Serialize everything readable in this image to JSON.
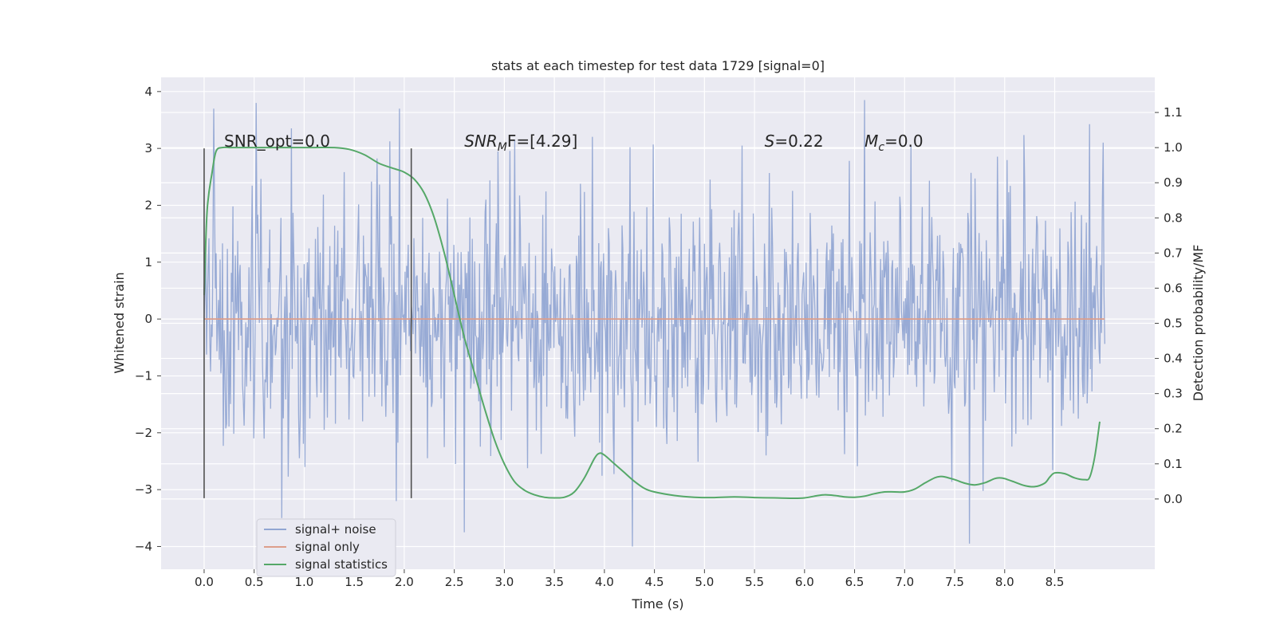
{
  "chart_data": {
    "type": "line",
    "title": "stats at each timestep for test data 1729 [signal=0]",
    "xlabel": "Time (s)",
    "ylabel": "Whitened strain",
    "ylabel_right": "Detection probability/MF",
    "xlim": [
      -0.43,
      9.5
    ],
    "ylim": [
      -4.4,
      4.25
    ],
    "ylim_right": [
      -0.2,
      1.2
    ],
    "x_ticks": [
      0.0,
      0.5,
      1.0,
      1.5,
      2.0,
      2.5,
      3.0,
      3.5,
      4.0,
      4.5,
      5.0,
      5.5,
      6.0,
      6.5,
      7.0,
      7.5,
      8.0,
      8.5
    ],
    "x_tick_labels": [
      "0.0",
      "0.5",
      "1.0",
      "1.5",
      "2.0",
      "2.5",
      "3.0",
      "3.5",
      "4.0",
      "4.5",
      "5.0",
      "5.5",
      "6.0",
      "6.5",
      "7.0",
      "7.5",
      "8.0",
      "8.5"
    ],
    "y_ticks": [
      4,
      3,
      2,
      1,
      0,
      -1,
      -2,
      -3,
      -4
    ],
    "y_tick_labels": [
      "4",
      "3",
      "2",
      "1",
      "0",
      "−1",
      "−2",
      "−3",
      "−4"
    ],
    "y_right_ticks": [
      1.1,
      1.0,
      0.9,
      0.8,
      0.7,
      0.6,
      0.5,
      0.4,
      0.3,
      0.2,
      0.1,
      0.0
    ],
    "y_right_tick_labels": [
      "1.1",
      "1.0",
      "0.9",
      "0.8",
      "0.7",
      "0.6",
      "0.5",
      "0.4",
      "0.3",
      "0.2",
      "0.1",
      "0.0"
    ],
    "grid": true,
    "legend_position": "lower-left",
    "series": [
      {
        "name": "signal+ noise",
        "axis": "left",
        "color": "#92a6d3",
        "x_range": [
          0.0,
          9.0
        ],
        "amplitude_envelope": [
          -3.9,
          3.85
        ],
        "sample_interval": 0.008,
        "peaks": [
          {
            "x": 0.1,
            "y": 3.7
          },
          {
            "x": 0.52,
            "y": 3.8
          },
          {
            "x": 1.95,
            "y": 3.7
          },
          {
            "x": 6.6,
            "y": 3.85
          },
          {
            "x": 0.78,
            "y": -3.5
          },
          {
            "x": 2.6,
            "y": -3.75
          },
          {
            "x": 4.28,
            "y": -4.0
          },
          {
            "x": 7.65,
            "y": -3.95
          }
        ]
      },
      {
        "name": "signal only",
        "axis": "left",
        "color": "#dd9e8b",
        "x": [
          0.0,
          9.0
        ],
        "y": [
          0.0,
          0.0
        ]
      },
      {
        "name": "signal statistics",
        "axis": "right",
        "color": "#55a868",
        "x": [
          0.0,
          0.03,
          0.08,
          0.12,
          0.18,
          0.25,
          0.35,
          0.5,
          0.7,
          0.9,
          1.1,
          1.3,
          1.45,
          1.6,
          1.75,
          1.9,
          2.0,
          2.1,
          2.2,
          2.3,
          2.4,
          2.5,
          2.6,
          2.7,
          2.8,
          2.9,
          3.0,
          3.1,
          3.2,
          3.3,
          3.4,
          3.5,
          3.6,
          3.7,
          3.8,
          3.9,
          3.95,
          4.0,
          4.1,
          4.2,
          4.3,
          4.4,
          4.5,
          4.7,
          4.9,
          5.1,
          5.3,
          5.5,
          5.7,
          5.9,
          6.0,
          6.1,
          6.2,
          6.3,
          6.4,
          6.5,
          6.6,
          6.7,
          6.8,
          6.9,
          7.0,
          7.1,
          7.2,
          7.3,
          7.35,
          7.4,
          7.5,
          7.6,
          7.7,
          7.8,
          7.9,
          7.95,
          8.0,
          8.1,
          8.2,
          8.3,
          8.4,
          8.45,
          8.5,
          8.6,
          8.7,
          8.8,
          8.85,
          8.9,
          8.95
        ],
        "y": [
          0.58,
          0.82,
          0.93,
          0.99,
          1.0,
          1.0,
          1.0,
          1.0,
          1.0,
          1.0,
          1.0,
          1.0,
          0.995,
          0.98,
          0.955,
          0.94,
          0.93,
          0.91,
          0.87,
          0.8,
          0.7,
          0.58,
          0.46,
          0.36,
          0.26,
          0.17,
          0.1,
          0.05,
          0.025,
          0.012,
          0.005,
          0.003,
          0.005,
          0.02,
          0.06,
          0.115,
          0.13,
          0.125,
          0.1,
          0.075,
          0.05,
          0.03,
          0.02,
          0.01,
          0.005,
          0.004,
          0.006,
          0.004,
          0.003,
          0.002,
          0.003,
          0.008,
          0.012,
          0.01,
          0.006,
          0.005,
          0.008,
          0.015,
          0.02,
          0.02,
          0.02,
          0.028,
          0.045,
          0.06,
          0.064,
          0.063,
          0.055,
          0.045,
          0.04,
          0.046,
          0.058,
          0.06,
          0.058,
          0.048,
          0.038,
          0.035,
          0.045,
          0.062,
          0.074,
          0.072,
          0.06,
          0.055,
          0.062,
          0.12,
          0.22
        ]
      }
    ],
    "vertical_lines": [
      {
        "x": 0.0,
        "y": [
          -3.15,
          3.0
        ]
      },
      {
        "x": 2.07,
        "y": [
          -3.15,
          3.0
        ]
      }
    ],
    "annotations": [
      {
        "id": "snr-opt",
        "text": "SNR_opt=0.0",
        "x": 0.2,
        "y": 3.0
      },
      {
        "id": "snr-mf",
        "base": "SNR",
        "sub": "M",
        "tail": "F=[4.29]",
        "x": 2.6,
        "y": 3.0
      },
      {
        "id": "s-value",
        "base": "S",
        "tail": "=0.22",
        "x": 5.6,
        "y": 3.0
      },
      {
        "id": "mc-value",
        "base": "M",
        "sub": "c",
        "tail": "=0.0",
        "x": 6.6,
        "y": 3.0
      }
    ]
  }
}
